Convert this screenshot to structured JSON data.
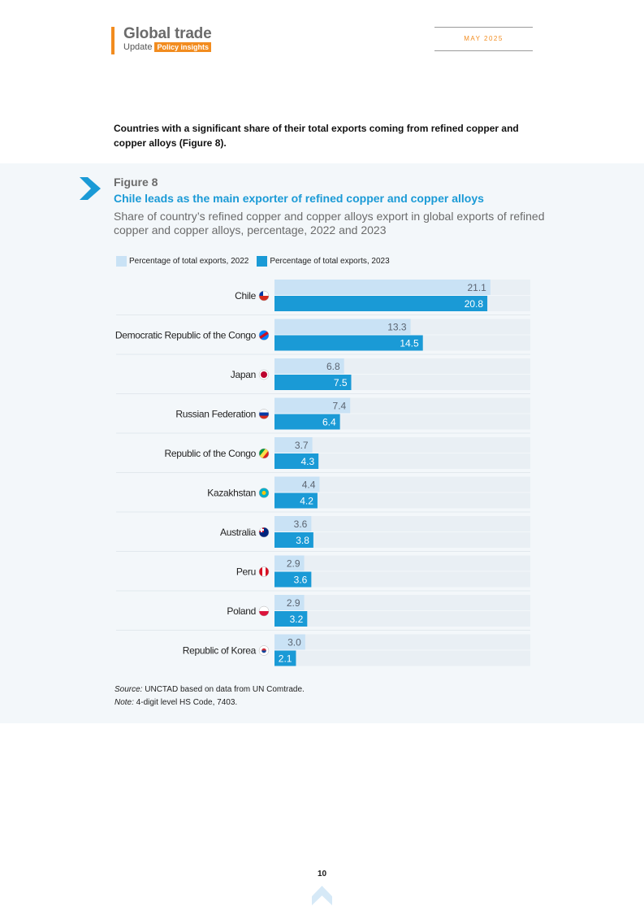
{
  "header": {
    "title": "Global trade",
    "sub_label": "Update",
    "badge": "Policy insights",
    "date": "MAY 2025"
  },
  "intro_text": "Countries with a significant share of their total exports coming from refined copper and copper alloys (Figure 8).",
  "figure": {
    "label": "Figure 8",
    "title": "Chile leads as the main exporter of refined copper and copper alloys",
    "subtitle": "Share of country’s refined copper and copper alloys export in global exports of refined copper and copper alloys, percentage, 2022 and 2023"
  },
  "colors": {
    "series_2022": "#c9e2f5",
    "series_2023": "#1a9ad6",
    "track": "#e9eff4",
    "accent": "#f28c1f"
  },
  "chart_data": {
    "type": "bar",
    "orientation": "horizontal",
    "categories": [
      "Chile",
      "Democratic Republic of the Congo",
      "Japan",
      "Russian Federation",
      "Republic of the Congo",
      "Kazakhstan",
      "Australia",
      "Peru",
      "Poland",
      "Republic of Korea"
    ],
    "flag_icons": [
      "chile-flag-icon",
      "drc-flag-icon",
      "japan-flag-icon",
      "russia-flag-icon",
      "congo-flag-icon",
      "kazakhstan-flag-icon",
      "australia-flag-icon",
      "peru-flag-icon",
      "poland-flag-icon",
      "korea-flag-icon"
    ],
    "series": [
      {
        "name": "Percentage of total exports, 2022",
        "values": [
          21.1,
          13.3,
          6.8,
          7.4,
          3.7,
          4.4,
          3.6,
          2.9,
          2.9,
          3.0
        ]
      },
      {
        "name": "Percentage of total exports, 2023",
        "values": [
          20.8,
          14.5,
          7.5,
          6.4,
          4.3,
          4.2,
          3.8,
          3.6,
          3.2,
          2.1
        ]
      }
    ],
    "xlim": [
      0,
      25
    ],
    "legend_position": "top-left",
    "grid": false
  },
  "footer": {
    "source_label": "Source:",
    "source_text": " UNCTAD based on data from UN Comtrade.",
    "note_label": "Note:",
    "note_text": " 4-digit level HS Code, 7403.",
    "page_number": "10"
  }
}
